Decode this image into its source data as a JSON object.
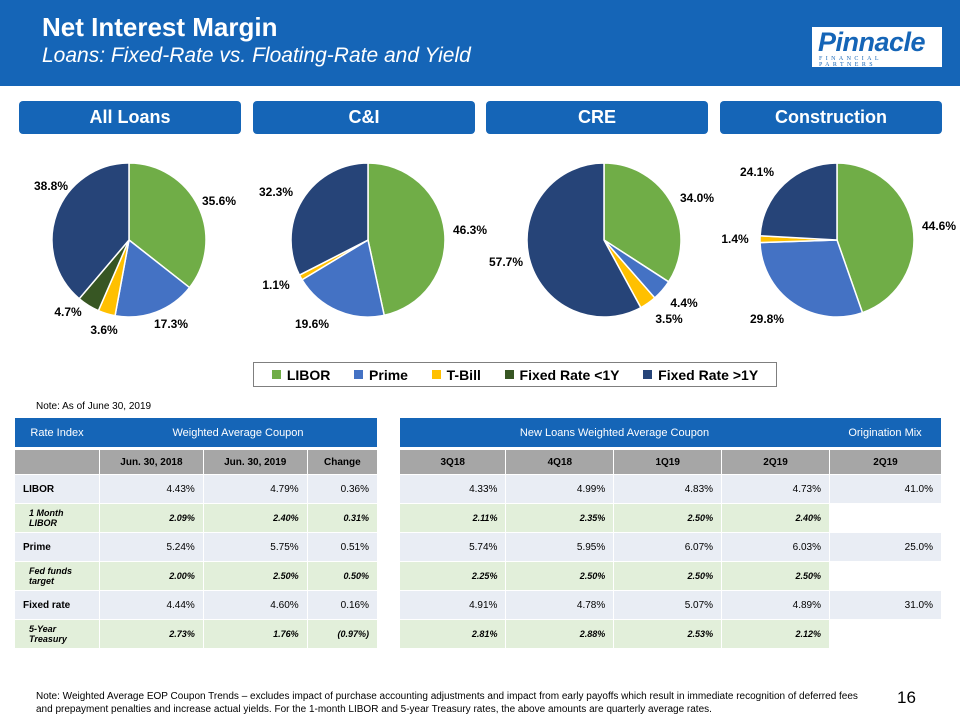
{
  "header": {
    "title": "Net Interest Margin",
    "subtitle": "Loans:  Fixed-Rate vs. Floating-Rate and Yield",
    "logo_word": "Pinnacle",
    "logo_sub": "FINANCIAL PARTNERS"
  },
  "colors": {
    "brand": "#1565b7",
    "LIBOR": "#70ad47",
    "Prime": "#4472c4",
    "T-Bill": "#ffc000",
    "Fixed Rate <1Y": "#375623",
    "Fixed Rate >1Y": "#264478"
  },
  "chart_data": [
    {
      "type": "pie",
      "title": "All Loans",
      "slices": [
        {
          "name": "LIBOR",
          "value": 35.6,
          "label": "35.6%"
        },
        {
          "name": "Prime",
          "value": 17.3,
          "label": "17.3%"
        },
        {
          "name": "T-Bill",
          "value": 3.6,
          "label": "3.6%"
        },
        {
          "name": "Fixed Rate <1Y",
          "value": 4.7,
          "label": "4.7%"
        },
        {
          "name": "Fixed Rate >1Y",
          "value": 38.8,
          "label": "38.8%"
        }
      ]
    },
    {
      "type": "pie",
      "title": "C&I",
      "slices": [
        {
          "name": "LIBOR",
          "value": 46.3,
          "label": "46.3%"
        },
        {
          "name": "Prime",
          "value": 19.6,
          "label": "19.6%"
        },
        {
          "name": "T-Bill",
          "value": 1.1,
          "label": "1.1%"
        },
        {
          "name": "Fixed Rate >1Y",
          "value": 32.3,
          "label": "32.3%"
        }
      ]
    },
    {
      "type": "pie",
      "title": "CRE",
      "slices": [
        {
          "name": "LIBOR",
          "value": 34.0,
          "label": "34.0%"
        },
        {
          "name": "Prime",
          "value": 4.4,
          "label": "4.4%"
        },
        {
          "name": "T-Bill",
          "value": 3.5,
          "label": "3.5%"
        },
        {
          "name": "Fixed Rate >1Y",
          "value": 57.7,
          "label": "57.7%"
        }
      ]
    },
    {
      "type": "pie",
      "title": "Construction",
      "slices": [
        {
          "name": "LIBOR",
          "value": 44.6,
          "label": "44.6%"
        },
        {
          "name": "Prime",
          "value": 29.8,
          "label": "29.8%"
        },
        {
          "name": "T-Bill",
          "value": 1.4,
          "label": "1.4%"
        },
        {
          "name": "Fixed Rate >1Y",
          "value": 24.1,
          "label": "24.1%"
        }
      ]
    }
  ],
  "legend": [
    "LIBOR",
    "Prime",
    "T-Bill",
    "Fixed Rate <1Y",
    "Fixed Rate >1Y"
  ],
  "note_top": "Note:  As of June 30, 2019",
  "left_table": {
    "header": [
      "Rate Index",
      "Weighted Average Coupon"
    ],
    "subheader": [
      "",
      "Jun. 30, 2018",
      "Jun. 30, 2019",
      "Change"
    ],
    "rows": [
      [
        "LIBOR",
        "4.43%",
        "4.79%",
        "0.36%"
      ],
      [
        "1 Month LIBOR",
        "2.09%",
        "2.40%",
        "0.31%"
      ],
      [
        "Prime",
        "5.24%",
        "5.75%",
        "0.51%"
      ],
      [
        "Fed funds target",
        "2.00%",
        "2.50%",
        "0.50%"
      ],
      [
        "Fixed rate",
        "4.44%",
        "4.60%",
        "0.16%"
      ],
      [
        "5-Year Treasury",
        "2.73%",
        "1.76%",
        "(0.97%)"
      ]
    ]
  },
  "right_table": {
    "header": [
      "New Loans Weighted Average Coupon",
      "Origination Mix"
    ],
    "subheader": [
      "3Q18",
      "4Q18",
      "1Q19",
      "2Q19",
      "2Q19"
    ],
    "rows": [
      [
        "4.33%",
        "4.99%",
        "4.83%",
        "4.73%",
        "41.0%"
      ],
      [
        "2.11%",
        "2.35%",
        "2.50%",
        "2.40%",
        ""
      ],
      [
        "5.74%",
        "5.95%",
        "6.07%",
        "6.03%",
        "25.0%"
      ],
      [
        "2.25%",
        "2.50%",
        "2.50%",
        "2.50%",
        ""
      ],
      [
        "4.91%",
        "4.78%",
        "5.07%",
        "4.89%",
        "31.0%"
      ],
      [
        "2.81%",
        "2.88%",
        "2.53%",
        "2.12%",
        ""
      ]
    ]
  },
  "note_bottom": "Note: Weighted Average EOP Coupon Trends – excludes impact of purchase accounting adjustments and impact from early payoffs which result in immediate recognition of deferred fees and prepayment penalties and increase actual yields. For the 1-month LIBOR and 5-year Treasury rates, the above amounts are quarterly average rates.",
  "page_number": "16"
}
